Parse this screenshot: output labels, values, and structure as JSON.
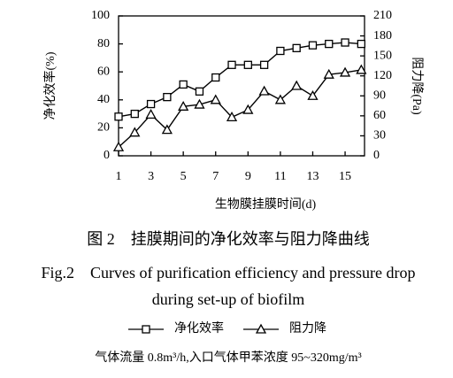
{
  "chart_data": {
    "type": "line",
    "x_label": "生物膜挂膜时间(d)",
    "y_label": "净化效率(%)",
    "y2_label": "阻力降(Pa)",
    "x": [
      1,
      2,
      3,
      4,
      5,
      6,
      7,
      8,
      9,
      10,
      11,
      12,
      13,
      14,
      15,
      16
    ],
    "xlim": [
      1,
      16.2
    ],
    "xticks": [
      1,
      3,
      5,
      7,
      9,
      11,
      13,
      15
    ],
    "ylim": [
      0,
      100
    ],
    "yticks": [
      0,
      20,
      40,
      60,
      80,
      100
    ],
    "y2lim": [
      0,
      210
    ],
    "y2ticks": [
      0,
      30,
      60,
      90,
      120,
      150,
      180,
      210
    ],
    "series": [
      {
        "name": "净化效率",
        "color": "#000000",
        "marker": "square",
        "values": [
          28,
          30,
          37,
          42,
          51,
          46,
          56,
          65,
          65,
          65,
          75,
          77,
          79,
          80,
          81,
          80
        ]
      },
      {
        "name": "阻力降",
        "color": "#000000",
        "marker": "triangle",
        "axis": "y2",
        "values": [
          13,
          35,
          62,
          39,
          74,
          77,
          84,
          58,
          69,
          97,
          84,
          105,
          90,
          122,
          125,
          129
        ]
      }
    ],
    "caption_cn": "图 2　挂膜期间的净化效率与阻力降曲线",
    "caption_en_1": "Fig.2　Curves of purification efficiency and pressure drop",
    "caption_en_2": "during set-up of biofilm",
    "note": "气体流量 0.8m³/h,入口气体甲苯浓度 95~320mg/m³"
  }
}
